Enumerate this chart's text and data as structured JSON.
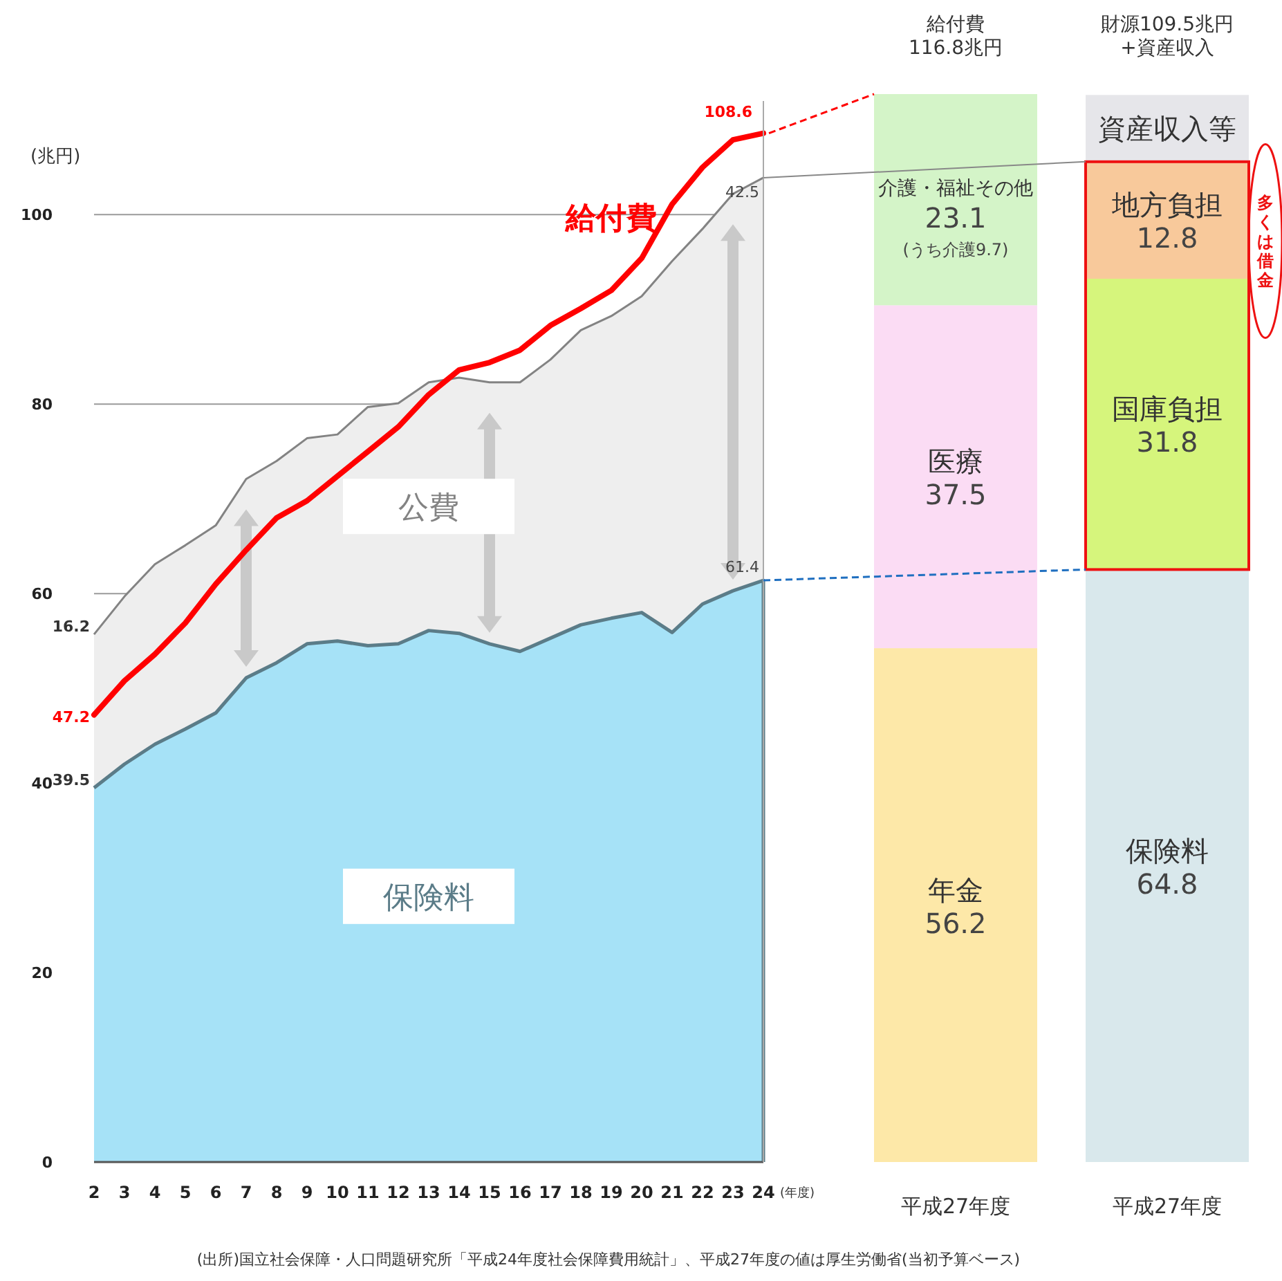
{
  "chart_data": [
    {
      "type": "area",
      "stacked": true,
      "ylabel": "(兆円)",
      "xlabel": "(年度)",
      "x": [
        2,
        3,
        4,
        5,
        6,
        7,
        8,
        9,
        10,
        11,
        12,
        13,
        14,
        15,
        16,
        17,
        18,
        19,
        20,
        21,
        22,
        23,
        24
      ],
      "xlim": [
        2,
        24
      ],
      "xticks": [
        2,
        3,
        4,
        5,
        6,
        7,
        8,
        9,
        10,
        11,
        12,
        13,
        14,
        15,
        16,
        17,
        18,
        19,
        20,
        21,
        22,
        23,
        24
      ],
      "ylim": [
        0,
        112
      ],
      "yticks": [
        0,
        20,
        40,
        60,
        80,
        100
      ],
      "grid": "y",
      "legend": false,
      "series": [
        {
          "name": "保険料",
          "type": "area",
          "color": "#a6e2f7",
          "values": [
            39.5,
            42.0,
            44.1,
            45.7,
            47.4,
            51.1,
            52.7,
            54.7,
            55.0,
            54.5,
            54.7,
            56.1,
            55.8,
            54.7,
            53.9,
            55.3,
            56.7,
            57.4,
            58.0,
            55.9,
            58.9,
            60.3,
            61.4
          ],
          "value_labels": [
            "39.5",
            null,
            null,
            null,
            null,
            null,
            null,
            null,
            null,
            null,
            null,
            null,
            null,
            null,
            null,
            null,
            null,
            null,
            null,
            null,
            null,
            null,
            "61.4"
          ]
        },
        {
          "name": "公費",
          "type": "area",
          "color": "#eeeeee",
          "values": [
            16.2,
            17.7,
            19.0,
            19.4,
            19.8,
            21.0,
            21.3,
            21.7,
            21.8,
            25.2,
            25.4,
            26.2,
            27.0,
            27.6,
            28.4,
            29.4,
            31.1,
            31.9,
            33.4,
            39.2,
            39.6,
            41.9,
            42.5
          ],
          "value_labels": [
            "16.2",
            null,
            null,
            null,
            null,
            null,
            null,
            null,
            null,
            null,
            null,
            null,
            null,
            null,
            null,
            null,
            null,
            null,
            null,
            null,
            null,
            null,
            "42.5"
          ]
        },
        {
          "name": "給付費",
          "type": "line",
          "color": "#ff0000",
          "values": [
            47.2,
            50.8,
            53.6,
            56.9,
            61.0,
            64.6,
            68.0,
            69.8,
            72.4,
            75.0,
            77.6,
            81.0,
            83.6,
            84.4,
            85.7,
            88.3,
            90.1,
            92.0,
            95.4,
            101.1,
            105.0,
            107.9,
            108.6
          ],
          "value_labels": [
            "47.2",
            null,
            null,
            null,
            null,
            null,
            null,
            null,
            null,
            null,
            null,
            null,
            null,
            null,
            null,
            null,
            null,
            null,
            null,
            null,
            null,
            null,
            "108.6"
          ]
        }
      ],
      "annotations": [
        "(出所)国立社会保障・人口問題研究所「平成24年度社会保障費用統計」、平成27年度の値は厚生労働省(当初予算ベース)"
      ]
    },
    {
      "type": "bar",
      "stacked": true,
      "categories": [
        "平成27年度",
        "平成27年度"
      ],
      "legend": false,
      "series": [
        {
          "name": "年金",
          "color": "#fde8a8",
          "values": [
            56.2,
            null
          ],
          "value_labels": [
            "56.2",
            null
          ]
        },
        {
          "name": "医療",
          "color": "#fbdcf4",
          "values": [
            37.5,
            null
          ],
          "value_labels": [
            "37.5",
            null
          ]
        },
        {
          "name": "介護・福祉その他",
          "color": "#d4f4c8",
          "values": [
            23.1,
            null
          ],
          "value_labels": [
            "23.1",
            null
          ]
        },
        {
          "name": "保険料",
          "color": "#d9e8ec",
          "values": [
            null,
            64.8
          ],
          "value_labels": [
            null,
            "64.8"
          ]
        },
        {
          "name": "国庫負担",
          "color": "#d6f57c",
          "values": [
            null,
            31.8
          ],
          "value_labels": [
            null,
            "31.8"
          ]
        },
        {
          "name": "地方負担",
          "color": "#f8c99b",
          "values": [
            null,
            12.8
          ],
          "value_labels": [
            null,
            "12.8"
          ]
        },
        {
          "name": "資産収入等",
          "color": "#e6e6ea",
          "values": [
            null,
            7.3
          ],
          "value_labels": [
            null,
            null
          ]
        }
      ],
      "annotations": [
        "給付費\n116.8兆円",
        "財源109.5兆円\n+資産収入",
        "(うち介護9.7)",
        "多くは借金"
      ]
    }
  ]
}
